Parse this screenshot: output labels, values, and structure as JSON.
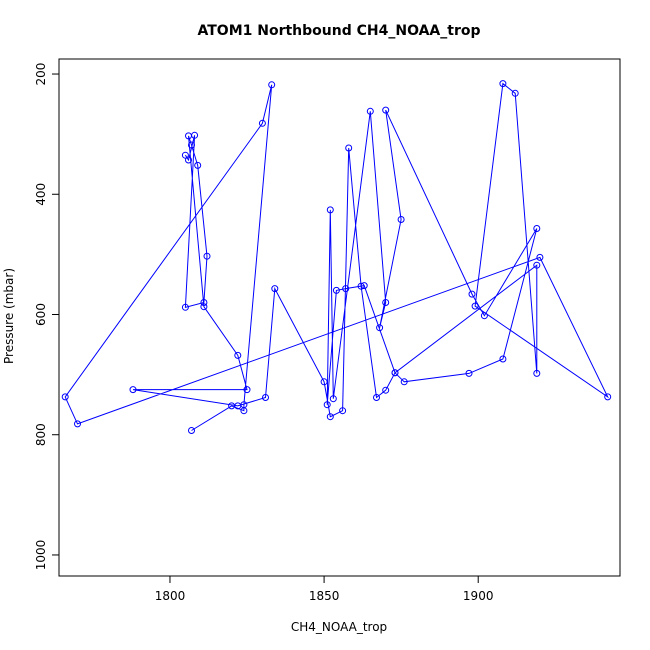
{
  "chart_data": {
    "type": "line",
    "title": "ATOM1 Northbound CH4_NOAA_trop",
    "xlabel": "CH4_NOAA_trop",
    "ylabel": "Pressure (mbar)",
    "xlim": [
      1764,
      1946
    ],
    "ylim": [
      1035,
      175
    ],
    "y_reversed": true,
    "xticks": [
      1800,
      1850,
      1900
    ],
    "yticks": [
      200,
      400,
      600,
      800,
      1000
    ],
    "series": [
      {
        "name": "CH4_NOAA_trop",
        "color": "#0000ff",
        "marker": "open-circle",
        "x": [
          1805,
          1806,
          1808,
          1805,
          1811,
          1812,
          1809,
          1807,
          1806,
          1811,
          1822,
          1825,
          1788,
          1822,
          1831,
          1834,
          1850,
          1852,
          1856,
          1858,
          1862,
          1867,
          1870,
          1873,
          1876,
          1897,
          1908,
          1919,
          1902,
          1898,
          1870,
          1875,
          1868,
          1870,
          1865,
          1853,
          1852,
          1851,
          1854,
          1857,
          1863,
          1873,
          1919,
          1919,
          1912,
          1908,
          1899,
          1942,
          1920,
          1770,
          1766,
          1830,
          1833,
          1824,
          1824,
          1820,
          1807
        ],
        "y": [
          335,
          343,
          302,
          588,
          580,
          503,
          352,
          318,
          303,
          587,
          668,
          725,
          725,
          752,
          738,
          557,
          712,
          770,
          760,
          323,
          553,
          738,
          726,
          697,
          712,
          698,
          674,
          457,
          602,
          566,
          260,
          442,
          622,
          580,
          262,
          740,
          426,
          750,
          560,
          557,
          552,
          697,
          518,
          698,
          232,
          216,
          586,
          737,
          505,
          782,
          737,
          282,
          218,
          750,
          760,
          752,
          793
        ]
      }
    ]
  }
}
